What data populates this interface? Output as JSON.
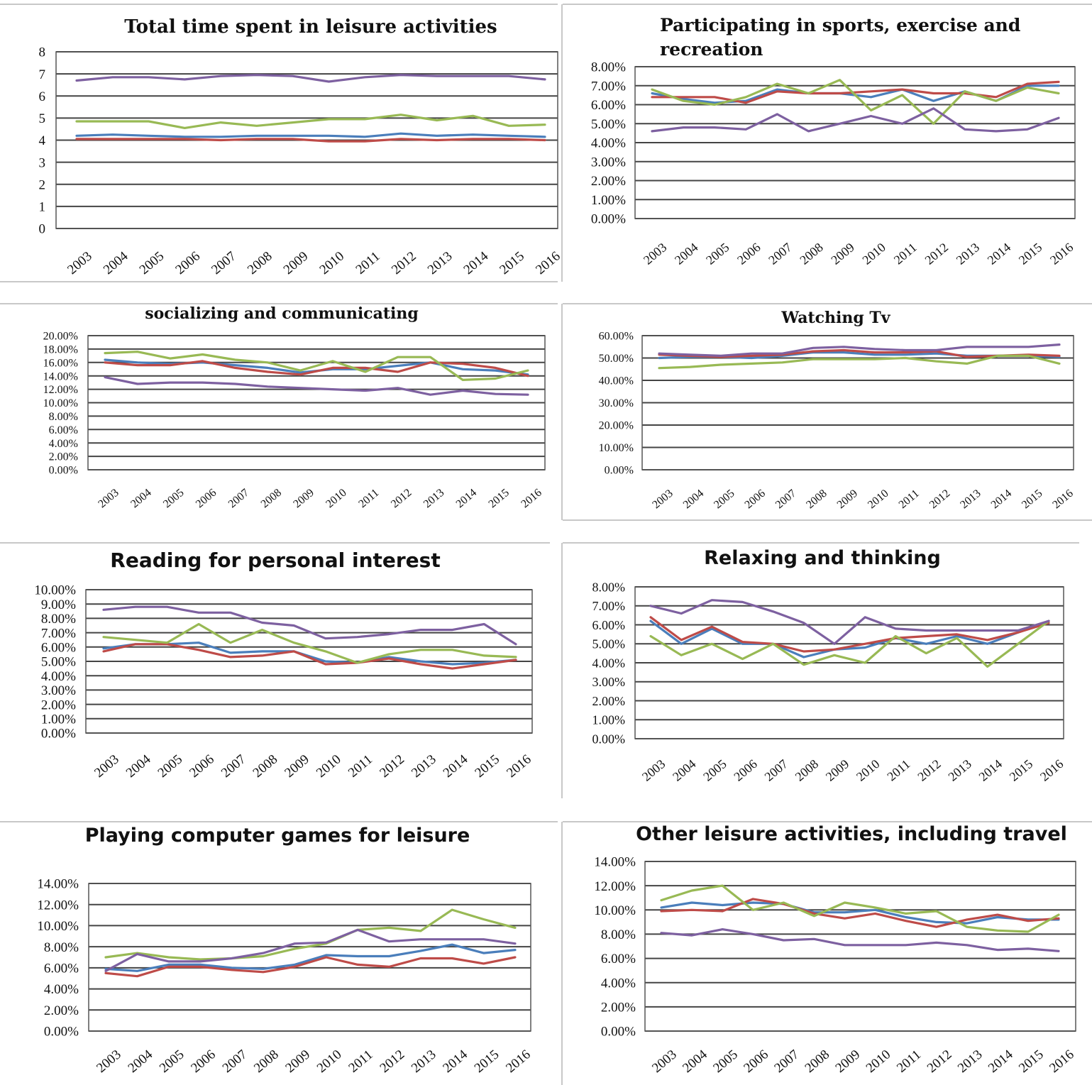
{
  "years": [
    "2003",
    "2004",
    "2005",
    "2006",
    "2007",
    "2008",
    "2009",
    "2010",
    "2011",
    "2012",
    "2013",
    "2014",
    "2015",
    "2016"
  ],
  "colors": {
    "blue": "#4a7ebb",
    "red": "#be4b48",
    "green": "#98b954",
    "purple": "#7d60a0"
  },
  "chart_data": [
    {
      "type": "line",
      "title": "Total time spent in leisure activities",
      "title_lines": [
        "Total time spent in leisure activities"
      ],
      "ylim": [
        0,
        8
      ],
      "yticks": [
        "0",
        "1",
        "2",
        "3",
        "4",
        "5",
        "6",
        "7",
        "8"
      ],
      "series": [
        {
          "color": "blue",
          "values": [
            4.2,
            4.25,
            4.2,
            4.15,
            4.15,
            4.2,
            4.2,
            4.2,
            4.15,
            4.3,
            4.2,
            4.25,
            4.2,
            4.15
          ]
        },
        {
          "color": "red",
          "values": [
            4.05,
            4.05,
            4.05,
            4.05,
            4.0,
            4.05,
            4.05,
            3.95,
            3.95,
            4.05,
            4.0,
            4.05,
            4.05,
            4.0
          ]
        },
        {
          "color": "green",
          "values": [
            4.85,
            4.85,
            4.85,
            4.55,
            4.8,
            4.65,
            4.8,
            4.95,
            4.95,
            5.15,
            4.9,
            5.1,
            4.65,
            4.7
          ]
        },
        {
          "color": "purple",
          "values": [
            6.7,
            6.85,
            6.85,
            6.75,
            6.9,
            6.95,
            6.9,
            6.65,
            6.85,
            6.95,
            6.9,
            6.9,
            6.9,
            6.75
          ]
        }
      ]
    },
    {
      "type": "line",
      "title": "Participating in sports, exercise and recreation",
      "title_lines": [
        "Participating in sports, exercise and",
        "recreation"
      ],
      "ylim": [
        0,
        8
      ],
      "yticks": [
        "0.00%",
        "1.00%",
        "2.00%",
        "3.00%",
        "4.00%",
        "5.00%",
        "6.00%",
        "7.00%",
        "8.00%"
      ],
      "series": [
        {
          "color": "blue",
          "values": [
            6.6,
            6.3,
            6.1,
            6.2,
            6.8,
            6.6,
            6.6,
            6.4,
            6.8,
            6.2,
            6.7,
            6.2,
            7.0,
            7.0
          ]
        },
        {
          "color": "red",
          "values": [
            6.4,
            6.4,
            6.4,
            6.1,
            6.7,
            6.6,
            6.6,
            6.7,
            6.8,
            6.6,
            6.6,
            6.4,
            7.1,
            7.2
          ]
        },
        {
          "color": "green",
          "values": [
            6.8,
            6.2,
            6.0,
            6.4,
            7.1,
            6.6,
            7.3,
            5.7,
            6.5,
            5.0,
            6.7,
            6.2,
            6.9,
            6.6
          ]
        },
        {
          "color": "purple",
          "values": [
            4.6,
            4.8,
            4.8,
            4.7,
            5.5,
            4.6,
            5.0,
            5.4,
            5.0,
            5.8,
            4.7,
            4.6,
            4.7,
            5.3
          ]
        }
      ]
    },
    {
      "type": "line",
      "title": "socializing and communicating",
      "title_lines": [
        "socializing and communicating"
      ],
      "ylim": [
        0,
        20
      ],
      "yticks": [
        "0.00%",
        "2.00%",
        "4.00%",
        "6.00%",
        "8.00%",
        "10.00%",
        "12.00%",
        "14.00%",
        "16.00%",
        "18.00%",
        "20.00%"
      ],
      "series": [
        {
          "color": "blue",
          "values": [
            16.4,
            16.0,
            15.8,
            16.0,
            15.6,
            15.2,
            14.5,
            15.0,
            15.0,
            15.5,
            16.0,
            15.0,
            14.8,
            14.2
          ]
        },
        {
          "color": "red",
          "values": [
            16.0,
            15.6,
            15.6,
            16.2,
            15.2,
            14.6,
            14.2,
            15.2,
            15.2,
            14.6,
            16.0,
            15.8,
            15.2,
            14.0
          ]
        },
        {
          "color": "green",
          "values": [
            17.4,
            17.6,
            16.6,
            17.2,
            16.4,
            16.0,
            14.8,
            16.2,
            14.6,
            16.8,
            16.8,
            13.4,
            13.6,
            14.8
          ]
        },
        {
          "color": "purple",
          "values": [
            13.8,
            12.8,
            13.0,
            13.0,
            12.8,
            12.4,
            12.2,
            12.0,
            11.8,
            12.2,
            11.2,
            11.8,
            11.3,
            11.2
          ]
        }
      ]
    },
    {
      "type": "line",
      "title": "Watching Tv",
      "title_lines": [
        "Watching Tv"
      ],
      "ylim": [
        0,
        60
      ],
      "yticks": [
        "0.00%",
        "10.00%",
        "20.00%",
        "30.00%",
        "40.00%",
        "50.00%",
        "60.00%"
      ],
      "series": [
        {
          "color": "blue",
          "values": [
            50.0,
            50.5,
            50.5,
            50.0,
            51.0,
            52.5,
            52.5,
            51.5,
            51.5,
            52.0,
            51.0,
            51.0,
            51.0,
            50.5
          ]
        },
        {
          "color": "red",
          "values": [
            51.5,
            51.0,
            50.5,
            51.0,
            51.5,
            53.0,
            53.5,
            52.5,
            52.5,
            53.0,
            50.5,
            51.0,
            51.5,
            51.0
          ]
        },
        {
          "color": "green",
          "values": [
            45.5,
            46.0,
            47.0,
            47.5,
            48.0,
            49.5,
            49.5,
            49.5,
            50.0,
            48.5,
            47.5,
            51.0,
            51.0,
            47.5
          ]
        },
        {
          "color": "purple",
          "values": [
            52.0,
            51.5,
            51.0,
            52.0,
            52.0,
            54.5,
            55.0,
            54.0,
            53.5,
            53.5,
            55.0,
            55.0,
            55.0,
            56.0
          ]
        }
      ]
    },
    {
      "type": "line",
      "title": "Reading for personal interest",
      "title_lines": [
        "Reading for personal interest"
      ],
      "ylim": [
        0,
        10
      ],
      "yticks": [
        "0.00%",
        "1.00%",
        "2.00%",
        "3.00%",
        "4.00%",
        "5.00%",
        "6.00%",
        "7.00%",
        "8.00%",
        "9.00%",
        "10.00%"
      ],
      "series": [
        {
          "color": "blue",
          "values": [
            5.9,
            6.2,
            6.2,
            6.3,
            5.6,
            5.7,
            5.7,
            5.0,
            4.9,
            5.3,
            5.0,
            4.8,
            4.9,
            5.1
          ]
        },
        {
          "color": "red",
          "values": [
            5.7,
            6.2,
            6.2,
            5.8,
            5.3,
            5.4,
            5.7,
            4.8,
            4.9,
            5.2,
            4.8,
            4.5,
            4.8,
            5.1
          ]
        },
        {
          "color": "green",
          "values": [
            6.7,
            6.5,
            6.3,
            7.6,
            6.3,
            7.2,
            6.3,
            5.7,
            4.9,
            5.5,
            5.8,
            5.8,
            5.4,
            5.3
          ]
        },
        {
          "color": "purple",
          "values": [
            8.6,
            8.8,
            8.8,
            8.4,
            8.4,
            7.7,
            7.5,
            6.6,
            6.7,
            6.9,
            7.2,
            7.2,
            7.6,
            6.2
          ]
        }
      ]
    },
    {
      "type": "line",
      "title": "Relaxing and thinking",
      "title_lines": [
        "Relaxing and thinking"
      ],
      "ylim": [
        0,
        8
      ],
      "yticks": [
        "0.00%",
        "1.00%",
        "2.00%",
        "3.00%",
        "4.00%",
        "5.00%",
        "6.00%",
        "7.00%",
        "8.00%"
      ],
      "series": [
        {
          "color": "blue",
          "values": [
            6.2,
            5.0,
            5.8,
            5.0,
            5.0,
            4.3,
            4.7,
            4.8,
            5.3,
            5.0,
            5.4,
            5.0,
            5.6,
            6.2
          ]
        },
        {
          "color": "red",
          "values": [
            6.4,
            5.2,
            5.9,
            5.1,
            5.0,
            4.6,
            4.7,
            5.0,
            5.3,
            5.4,
            5.5,
            5.2,
            5.6,
            6.1
          ]
        },
        {
          "color": "green",
          "values": [
            5.4,
            4.4,
            5.0,
            4.2,
            5.0,
            3.9,
            4.4,
            4.0,
            5.4,
            4.5,
            5.3,
            3.8,
            5.0,
            6.2
          ]
        },
        {
          "color": "purple",
          "values": [
            7.0,
            6.6,
            7.3,
            7.2,
            6.7,
            6.1,
            5.0,
            6.4,
            5.8,
            5.7,
            5.7,
            5.7,
            5.7,
            6.2
          ]
        }
      ]
    },
    {
      "type": "line",
      "title": "Playing computer games for leisure",
      "title_lines": [
        "Playing computer games for leisure"
      ],
      "ylim": [
        0,
        14
      ],
      "yticks": [
        "0.00%",
        "2.00%",
        "4.00%",
        "6.00%",
        "8.00%",
        "10.00%",
        "12.00%",
        "14.00%"
      ],
      "series": [
        {
          "color": "blue",
          "values": [
            5.9,
            5.7,
            6.3,
            6.3,
            6.0,
            5.9,
            6.3,
            7.2,
            7.1,
            7.1,
            7.6,
            8.2,
            7.4,
            7.7
          ]
        },
        {
          "color": "red",
          "values": [
            5.5,
            5.2,
            6.1,
            6.1,
            5.8,
            5.6,
            6.1,
            7.0,
            6.3,
            6.1,
            6.9,
            6.9,
            6.4,
            7.0
          ]
        },
        {
          "color": "green",
          "values": [
            7.0,
            7.4,
            7.0,
            6.8,
            6.9,
            7.1,
            7.8,
            8.3,
            9.6,
            9.8,
            9.5,
            11.5,
            10.6,
            9.8
          ]
        },
        {
          "color": "purple",
          "values": [
            5.7,
            7.3,
            6.6,
            6.6,
            6.9,
            7.4,
            8.3,
            8.4,
            9.6,
            8.5,
            8.7,
            8.7,
            8.7,
            8.3
          ]
        }
      ]
    },
    {
      "type": "line",
      "title": "Other leisure activities, including travel",
      "title_lines": [
        "Other leisure activities, including travel"
      ],
      "ylim": [
        0,
        14
      ],
      "yticks": [
        "0.00%",
        "2.00%",
        "4.00%",
        "6.00%",
        "8.00%",
        "10.00%",
        "12.00%",
        "14.00%"
      ],
      "series": [
        {
          "color": "blue",
          "values": [
            10.2,
            10.6,
            10.4,
            10.6,
            10.5,
            9.8,
            9.8,
            10.0,
            9.4,
            9.0,
            8.9,
            9.4,
            9.2,
            9.2
          ]
        },
        {
          "color": "red",
          "values": [
            9.9,
            10.0,
            9.9,
            10.9,
            10.5,
            9.7,
            9.3,
            9.7,
            9.1,
            8.6,
            9.2,
            9.6,
            9.1,
            9.3
          ]
        },
        {
          "color": "green",
          "values": [
            10.8,
            11.6,
            12.0,
            10.0,
            10.6,
            9.5,
            10.6,
            10.2,
            9.7,
            9.9,
            8.6,
            8.3,
            8.2,
            9.6
          ]
        },
        {
          "color": "purple",
          "values": [
            8.1,
            7.9,
            8.4,
            8.0,
            7.5,
            7.6,
            7.1,
            7.1,
            7.1,
            7.3,
            7.1,
            6.7,
            6.8,
            6.6
          ]
        }
      ]
    }
  ]
}
